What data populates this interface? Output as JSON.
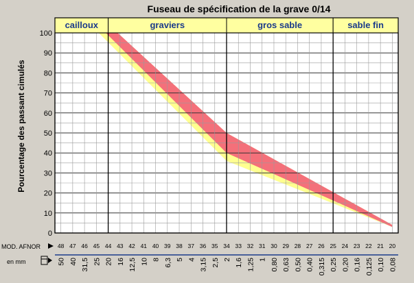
{
  "chart_data": {
    "type": "area",
    "title": "Fuseau de spécification de la grave 0/14",
    "ylabel": "Pourcentage des passant cimulés",
    "ylim": [
      0,
      100
    ],
    "yticks": [
      "0",
      "10",
      "20",
      "30",
      "40",
      "50",
      "60",
      "70",
      "80",
      "90",
      "100"
    ],
    "x_axis_label": "MOD. AFNOR",
    "x_axis_label2": "en mm",
    "module_ticks": [
      "48",
      "47",
      "46",
      "45",
      "44",
      "43",
      "42",
      "41",
      "40",
      "39",
      "38",
      "37",
      "36",
      "35",
      "34",
      "33",
      "32",
      "31",
      "30",
      "29",
      "28",
      "27",
      "26",
      "25",
      "24",
      "23",
      "22",
      "21",
      "20"
    ],
    "mm_ticks": [
      "50",
      "40",
      "31,5",
      "25",
      "20",
      "16",
      "12,5",
      "10",
      "8",
      "6,3",
      "5",
      "4",
      "3,15",
      "2,5",
      "2",
      "1,6",
      "1,25",
      "1",
      "0,80",
      "0,63",
      "0,50",
      "0,40",
      "0,315",
      "0,25",
      "0,20",
      "0,16",
      "0,125",
      "0,10",
      "0,08"
    ],
    "zones": [
      {
        "label": "cailloux",
        "from": 48,
        "to": 44
      },
      {
        "label": "graviers",
        "from": 44,
        "to": 34
      },
      {
        "label": "gros sable",
        "from": 34,
        "to": 25
      },
      {
        "label": "sable fin",
        "from": 25,
        "to": 20
      }
    ],
    "envelope_upper": {
      "module": [
        43.2,
        34,
        20
      ],
      "value": [
        100,
        50,
        4
      ]
    },
    "envelope_lower": {
      "module": [
        44.8,
        34,
        20
      ],
      "value": [
        100,
        36,
        3
      ]
    },
    "red_band": {
      "upper": {
        "module": [
          43.2,
          34,
          20
        ],
        "value": [
          100,
          50,
          4
        ]
      },
      "lower": {
        "module": [
          44.2,
          34,
          20
        ],
        "value": [
          100,
          40,
          3
        ]
      }
    },
    "colors": {
      "yellow": "#ffff90",
      "red": "#f4707a",
      "zone_header": "#ffffa0",
      "plot_bg": "#ffffff",
      "grid": "#9a9a9a",
      "blue": "#1a3a8a"
    }
  }
}
